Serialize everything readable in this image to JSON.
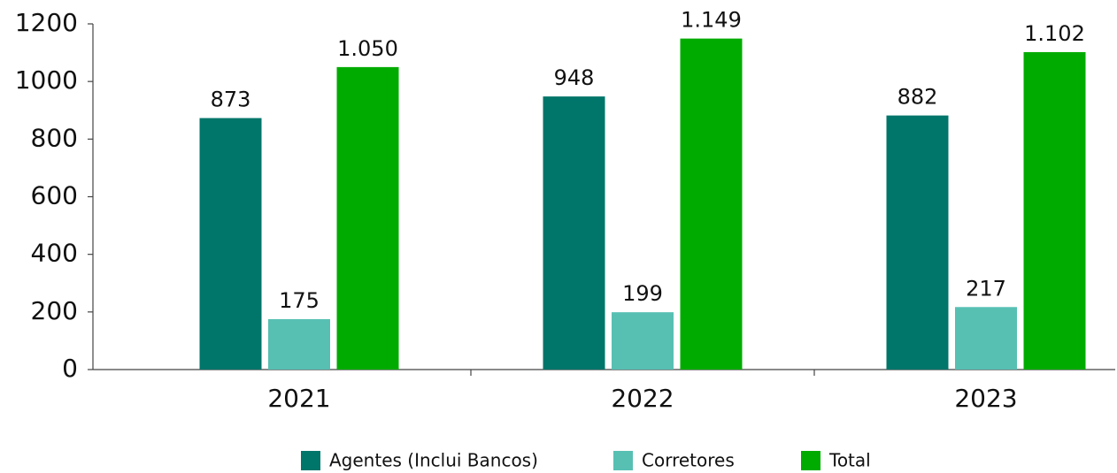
{
  "chart_data": {
    "type": "bar",
    "categories": [
      "2021",
      "2022",
      "2023"
    ],
    "series": [
      {
        "name": "Agentes (Inclui Bancos)",
        "color": "#00756a",
        "values": [
          873,
          948,
          882
        ]
      },
      {
        "name": "Corretores",
        "color": "#57c0b3",
        "values": [
          175,
          199,
          217
        ]
      },
      {
        "name": "Total",
        "color": "#00ab00",
        "values": [
          1050,
          1149,
          1102
        ],
        "value_labels": [
          "1.050",
          "1.149",
          "1.102"
        ]
      }
    ],
    "ylim": [
      0,
      1200
    ],
    "yticks": [
      0,
      200,
      400,
      600,
      800,
      1000,
      1200
    ]
  }
}
